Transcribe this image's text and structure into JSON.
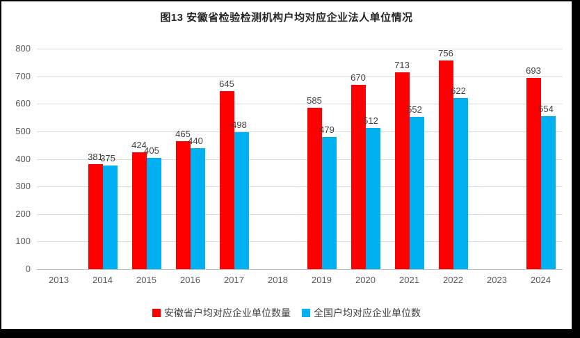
{
  "title": "图13  安徽省检验检测机构户均对应企业法人单位情况",
  "colors": {
    "anhui_series": "#FF0000",
    "national_series": "#00B0F0",
    "gridline": "#D9D9D9",
    "axis_line": "#BFBFBF",
    "axis_text": "#595959",
    "value_label_text": "#404040",
    "frame_border": "#000000"
  },
  "legend": {
    "items": [
      {
        "label": "安徽省户均对应企业单位数量",
        "color": "#FF0000"
      },
      {
        "label": "全国户均对应企业单位数",
        "color": "#00B0F0"
      }
    ]
  },
  "chart_data": {
    "type": "bar",
    "title": "图13  安徽省检验检测机构户均对应企业法人单位情况",
    "categories": [
      "2013",
      "2014",
      "2015",
      "2016",
      "2017",
      "2018",
      "2019",
      "2020",
      "2021",
      "2022",
      "2023",
      "2024"
    ],
    "series": [
      {
        "name": "安徽省户均对应企业单位数量",
        "color": "#FF0000",
        "values": [
          null,
          381,
          424,
          465,
          645,
          null,
          585,
          670,
          713,
          756,
          null,
          693
        ]
      },
      {
        "name": "全国户均对应企业单位数",
        "color": "#00B0F0",
        "values": [
          null,
          375,
          405,
          440,
          498,
          null,
          479,
          512,
          552,
          622,
          null,
          554
        ]
      }
    ],
    "xlabel": "",
    "ylabel": "",
    "ylim": [
      0,
      800
    ],
    "ytick_step": 100,
    "yticks": [
      0,
      100,
      200,
      300,
      400,
      500,
      600,
      700,
      800
    ],
    "grid": true,
    "data_labels": true,
    "legend_position": "bottom"
  }
}
